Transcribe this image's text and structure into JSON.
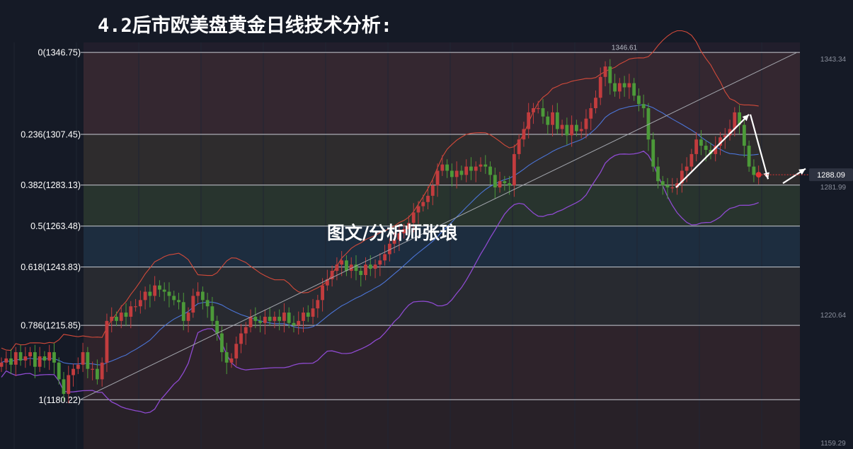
{
  "chart_data": {
    "type": "candlestick",
    "title": "4.2后市欧美盘黄金日线技术分析:",
    "watermark": "图文/分析师张琅",
    "price_range": [
      1159.29,
      1349.5
    ],
    "price_axis_ticks": [
      "1343.34",
      "1281.99",
      "1220.64",
      "1159.29"
    ],
    "current_price": "1288.09",
    "peak_label": "1346.61",
    "fibonacci_levels": [
      {
        "label": "0(1346.75)",
        "price": 1346.75
      },
      {
        "label": "0.236(1307.45)",
        "price": 1307.45
      },
      {
        "label": "0.382(1283.13)",
        "price": 1283.13
      },
      {
        "label": "0.5(1263.48)",
        "price": 1263.48
      },
      {
        "label": "0.618(1243.83)",
        "price": 1243.83
      },
      {
        "label": "0.786(1215.85)",
        "price": 1215.85
      },
      {
        "label": "1(1180.22)",
        "price": 1180.22
      }
    ],
    "close_series": [
      1198,
      1200,
      1197,
      1203,
      1199,
      1201,
      1203,
      1196,
      1201,
      1199,
      1203,
      1198,
      1190,
      1183,
      1192,
      1195,
      1197,
      1203,
      1195,
      1195,
      1190,
      1198,
      1218,
      1220,
      1218,
      1222,
      1220,
      1225,
      1225,
      1228,
      1232,
      1230,
      1235,
      1233,
      1232,
      1230,
      1228,
      1227,
      1218,
      1222,
      1230,
      1232,
      1228,
      1225,
      1218,
      1212,
      1203,
      1198,
      1200,
      1207,
      1212,
      1215,
      1220,
      1218,
      1217,
      1220,
      1218,
      1220,
      1218,
      1222,
      1217,
      1216,
      1218,
      1222,
      1220,
      1224,
      1228,
      1235,
      1238,
      1242,
      1245,
      1247,
      1242,
      1245,
      1242,
      1240,
      1245,
      1243,
      1245,
      1247,
      1250,
      1255,
      1257,
      1260,
      1262,
      1265,
      1270,
      1273,
      1275,
      1278,
      1283,
      1290,
      1293,
      1290,
      1287,
      1290,
      1288,
      1292,
      1290,
      1292,
      1293,
      1292,
      1288,
      1282,
      1285,
      1284,
      1283,
      1298,
      1305,
      1310,
      1318,
      1320,
      1320,
      1316,
      1312,
      1318,
      1310,
      1312,
      1307,
      1312,
      1309,
      1310,
      1315,
      1320,
      1325,
      1335,
      1340,
      1332,
      1328,
      1332,
      1330,
      1332,
      1326,
      1322,
      1320,
      1305,
      1292,
      1285,
      1283,
      1282,
      1282,
      1284,
      1290,
      1292,
      1298,
      1305,
      1302,
      1300,
      1298,
      1302,
      1306,
      1307,
      1310,
      1318,
      1312,
      1302,
      1292,
      1288,
      1288
    ],
    "current_price_value": 1288.09,
    "annotations": [
      {
        "type": "trendline",
        "from": [
          113,
          1180.22
        ],
        "to": [
          1126,
          1346.75
        ]
      },
      {
        "type": "arrow",
        "from": [
          955,
          1282
        ],
        "to": [
          1058,
          1317
        ]
      },
      {
        "type": "arrow",
        "from": [
          1060,
          1317
        ],
        "to": [
          1085,
          1286
        ]
      },
      {
        "type": "arrow",
        "from": [
          1106,
          1284
        ],
        "to": [
          1138,
          1291
        ]
      }
    ],
    "colors": {
      "up": "#c23c3e",
      "down": "#4c9a39",
      "ma": "#4b74d6",
      "upper_band": "#d24a3a",
      "lower_band": "#8e4ad0",
      "trend": "#a3a6ad",
      "arrow": "#ffffff",
      "current_marker": "#e03434"
    }
  }
}
